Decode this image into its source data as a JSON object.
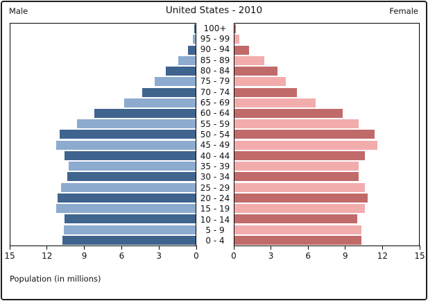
{
  "chart_data": {
    "type": "bar",
    "variant": "population-pyramid",
    "title": "United States - 2010",
    "left_label": "Male",
    "right_label": "Female",
    "xlabel": "Population (in millions)",
    "unit": "millions",
    "age_groups": [
      "100+",
      "95 - 99",
      "90 - 94",
      "85 - 89",
      "80 - 84",
      "75 - 79",
      "70 - 74",
      "65 - 69",
      "60 - 64",
      "55 - 59",
      "50 - 54",
      "45 - 49",
      "40 - 44",
      "35 - 39",
      "30 - 34",
      "25 - 29",
      "20 - 24",
      "15 - 19",
      "10 - 14",
      "5 - 9",
      "0 - 4"
    ],
    "series": [
      {
        "name": "Male",
        "values": [
          0.1,
          0.2,
          0.6,
          1.4,
          2.4,
          3.3,
          4.3,
          5.8,
          8.2,
          9.6,
          11.0,
          11.3,
          10.6,
          10.3,
          10.4,
          10.9,
          11.2,
          11.3,
          10.6,
          10.7,
          10.8
        ]
      },
      {
        "name": "Female",
        "values": [
          0.1,
          0.4,
          1.2,
          2.4,
          3.5,
          4.2,
          5.1,
          6.6,
          8.8,
          10.1,
          11.4,
          11.6,
          10.6,
          10.1,
          10.1,
          10.6,
          10.8,
          10.6,
          10.0,
          10.3,
          10.3
        ]
      }
    ],
    "xlim": [
      0,
      15
    ],
    "axis": {
      "max": 15,
      "male_ticks": [
        15,
        12,
        9,
        6,
        3,
        0
      ],
      "female_ticks": [
        0,
        3,
        6,
        9,
        12,
        15
      ]
    },
    "grid": false,
    "legend": "none",
    "colors": {
      "male_dark": "#3f648e",
      "male_light": "#8cabcf",
      "female_dark": "#c16a6a",
      "female_light": "#f2acac",
      "border": "#000000"
    }
  }
}
